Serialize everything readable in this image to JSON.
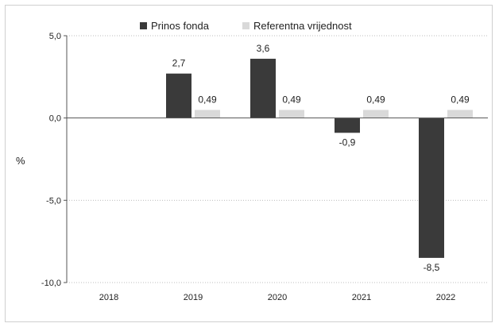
{
  "chart_data": {
    "type": "bar",
    "categories": [
      "2018",
      "2019",
      "2020",
      "2021",
      "2022"
    ],
    "series": [
      {
        "name": "Prinos fonda",
        "color": "#3a3a3a",
        "values": [
          null,
          2.7,
          3.6,
          -0.9,
          -8.5
        ],
        "labels": [
          "",
          "2,7",
          "3,6",
          "-0,9",
          "-8,5"
        ]
      },
      {
        "name": "Referentna vrijednost",
        "color": "#d9d9d9",
        "values": [
          null,
          0.49,
          0.49,
          0.49,
          0.49
        ],
        "labels": [
          "",
          "0,49",
          "0,49",
          "0,49",
          "0,49"
        ]
      }
    ],
    "ylabel": "%",
    "ylim": [
      -10,
      5
    ],
    "yticks": [
      5,
      0,
      -5,
      -10
    ],
    "ytick_labels": [
      "5,0",
      "0,0",
      "-5,0",
      "-10,0"
    ],
    "grid": "horizontal-dotted",
    "legend_position": "top-center"
  }
}
